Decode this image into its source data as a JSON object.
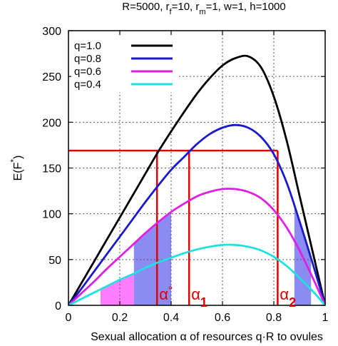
{
  "chart_data": {
    "type": "line",
    "title_parts": [
      {
        "t": "R=5000, r",
        "sub": false
      },
      {
        "t": "f",
        "sub": true
      },
      {
        "t": "=10, r",
        "sub": false
      },
      {
        "t": "m",
        "sub": true
      },
      {
        "t": "=1, w=1, h=1000",
        "sub": false
      }
    ],
    "xlabel": "Sexual allocation α of resources q·R to ovules",
    "ylabel_parts": [
      {
        "t": "E(F",
        "sup": false
      },
      {
        "t": "*",
        "sup": true
      },
      {
        "t": ")",
        "sup": false
      }
    ],
    "xlim": [
      0,
      1
    ],
    "ylim": [
      0,
      300
    ],
    "xticks": [
      0,
      0.2,
      0.4,
      0.6,
      0.8,
      1
    ],
    "xtick_labels": [
      "0",
      "0.2",
      "0.4",
      "0.6",
      "0.8",
      "1"
    ],
    "yticks": [
      0,
      50,
      100,
      150,
      200,
      250,
      300
    ],
    "ytick_labels": [
      "0",
      "50",
      "100",
      "150",
      "200",
      "250",
      "300"
    ],
    "grid": true,
    "legend_position": "top-left",
    "x": [
      0,
      0.05,
      0.1,
      0.15,
      0.2,
      0.25,
      0.3,
      0.35,
      0.4,
      0.45,
      0.5,
      0.55,
      0.6,
      0.65,
      0.7,
      0.75,
      0.8,
      0.85,
      0.9,
      0.95,
      1.0
    ],
    "series": [
      {
        "name": "q=1.0",
        "color": "#000000",
        "values": [
          0,
          24,
          48,
          72,
          96,
          120,
          144,
          168,
          190,
          211,
          231,
          248,
          262,
          270,
          272,
          260,
          228,
          180,
          120,
          60,
          0
        ]
      },
      {
        "name": "q=0.8",
        "color": "#1a1acc",
        "values": [
          0,
          18,
          37,
          56,
          75,
          94,
          113,
          131,
          148,
          162,
          176,
          187,
          194,
          197,
          194,
          184,
          165,
          134,
          92,
          47,
          0
        ]
      },
      {
        "name": "q=0.6",
        "color": "#e020e0",
        "values": [
          0,
          13,
          26,
          40,
          53,
          66,
          79,
          91,
          102,
          111,
          119,
          124,
          127,
          127,
          124,
          117,
          104,
          85,
          60,
          31,
          0
        ]
      },
      {
        "name": "q=0.4",
        "color": "#20e0e0",
        "values": [
          0,
          7,
          14,
          21,
          28,
          34,
          41,
          47,
          52,
          57,
          61,
          64,
          66,
          66,
          64,
          60,
          53,
          43,
          30,
          16,
          0
        ]
      }
    ],
    "reference_line": {
      "y": 169,
      "x_left": 0,
      "x_right": 0.815,
      "color": "#e00000"
    },
    "vertical_markers": [
      {
        "x": 0.345,
        "label": "α°"
      },
      {
        "x": 0.47,
        "label": "α1"
      },
      {
        "x": 0.815,
        "label": "α2"
      }
    ],
    "shaded_regions": [
      {
        "x0": 0.125,
        "x1": 0.255,
        "series": "q=0.4",
        "color": "#ff66ff"
      },
      {
        "x0": 0.255,
        "x1": 0.4,
        "series": "q=0.6",
        "color": "#7777ee"
      },
      {
        "x0": 0.88,
        "x1": 0.945,
        "series": "q=0.8",
        "color": "#7777ee"
      }
    ]
  }
}
